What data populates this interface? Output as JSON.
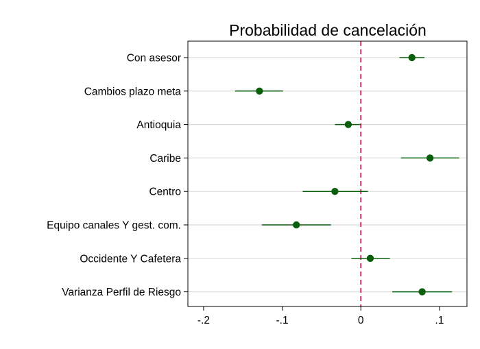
{
  "chart_data": {
    "type": "scatter",
    "title": "Probabilidad de cancelación",
    "xlabel": "",
    "ylabel": "",
    "xlim": [
      -0.22,
      0.135
    ],
    "xticks": [
      -0.2,
      -0.1,
      0,
      0.1
    ],
    "xtick_labels": [
      "-.2",
      "-.1",
      "0",
      ".1"
    ],
    "grid": true,
    "reference_line": {
      "x": 0,
      "style": "dashed",
      "color": "#d6336c"
    },
    "marker_color": "#0b5e0b",
    "ci_color": "#0b5e0b",
    "points": [
      {
        "label": "Con asesor",
        "estimate": 0.065,
        "ci": [
          0.049,
          0.081
        ]
      },
      {
        "label": "Cambios plazo meta",
        "estimate": -0.129,
        "ci": [
          -0.16,
          -0.099
        ]
      },
      {
        "label": "Antioquia",
        "estimate": -0.016,
        "ci": [
          -0.033,
          0.0
        ]
      },
      {
        "label": "Caribe",
        "estimate": 0.088,
        "ci": [
          0.051,
          0.125
        ]
      },
      {
        "label": "Centro",
        "estimate": -0.033,
        "ci": [
          -0.074,
          0.009
        ]
      },
      {
        "label": "Equipo canales Y gest. com.",
        "estimate": -0.082,
        "ci": [
          -0.126,
          -0.038
        ]
      },
      {
        "label": "Occidente Y Cafetera",
        "estimate": 0.012,
        "ci": [
          -0.012,
          0.037
        ]
      },
      {
        "label": "Varianza Perfil de Riesgo",
        "estimate": 0.078,
        "ci": [
          0.04,
          0.116
        ]
      }
    ]
  }
}
